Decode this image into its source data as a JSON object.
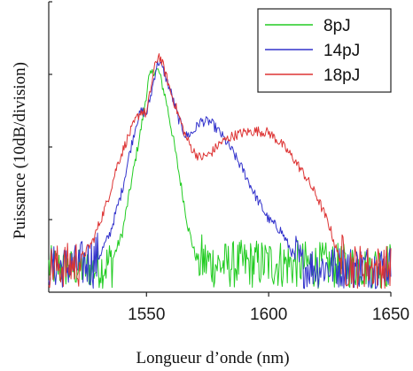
{
  "chart_data": {
    "type": "line",
    "title": "",
    "xlabel": "Longueur d’onde (nm)",
    "ylabel": "Puissance (10dB/division)",
    "xlim": [
      1510,
      1650
    ],
    "ylim": [
      0,
      4
    ],
    "x_ticks": [
      1550,
      1600,
      1650
    ],
    "x_tick_labels": [
      "1550",
      "1600",
      "1650"
    ],
    "y_ticks": [
      1,
      2,
      3,
      4
    ],
    "y_tick_labels": [
      "",
      "",
      "",
      ""
    ],
    "grid": false,
    "legend_position": "top-right",
    "noise_floor": 0.05,
    "series": [
      {
        "name": "8pJ",
        "color": "#22cc22",
        "x": [
          1510,
          1520,
          1530,
          1535,
          1540,
          1544,
          1548,
          1551,
          1553,
          1555,
          1558,
          1561,
          1564,
          1567,
          1570,
          1573,
          1576,
          1580,
          1600,
          1620,
          1640,
          1650
        ],
        "y": [
          0.25,
          0.2,
          0.2,
          0.35,
          0.8,
          1.55,
          2.3,
          2.95,
          3.05,
          3.05,
          2.65,
          2.1,
          1.5,
          0.9,
          0.5,
          0.4,
          0.35,
          0.3,
          0.35,
          0.3,
          0.25,
          0.3
        ]
      },
      {
        "name": "14pJ",
        "color": "#3333cc",
        "x": [
          1510,
          1520,
          1530,
          1535,
          1540,
          1543,
          1546,
          1548,
          1550,
          1552,
          1554,
          1555,
          1557,
          1560,
          1563,
          1566,
          1569,
          1572,
          1576,
          1580,
          1585,
          1590,
          1595,
          1600,
          1605,
          1608,
          1611,
          1614,
          1620,
          1630,
          1640,
          1650
        ],
        "y": [
          0.25,
          0.25,
          0.45,
          0.8,
          1.4,
          1.9,
          2.35,
          2.5,
          2.45,
          2.75,
          3.1,
          3.18,
          3.05,
          2.75,
          2.4,
          2.15,
          2.2,
          2.35,
          2.35,
          2.2,
          1.95,
          1.65,
          1.3,
          1.0,
          0.85,
          0.65,
          0.45,
          0.25,
          0.25,
          0.25,
          0.25,
          0.25
        ]
      },
      {
        "name": "18pJ",
        "color": "#dd3333",
        "x": [
          1510,
          1520,
          1528,
          1534,
          1538,
          1542,
          1546,
          1548,
          1550,
          1553,
          1555,
          1557,
          1560,
          1563,
          1566,
          1569,
          1572,
          1576,
          1580,
          1585,
          1590,
          1595,
          1600,
          1605,
          1610,
          1615,
          1620,
          1625,
          1628,
          1632,
          1640,
          1650
        ],
        "y": [
          0.25,
          0.3,
          0.7,
          1.25,
          1.75,
          2.1,
          2.4,
          2.5,
          2.45,
          3.05,
          3.28,
          3.1,
          2.75,
          2.45,
          2.15,
          1.95,
          1.85,
          1.9,
          2.05,
          2.15,
          2.2,
          2.22,
          2.2,
          2.05,
          1.85,
          1.6,
          1.3,
          0.9,
          0.55,
          0.3,
          0.25,
          0.25
        ]
      }
    ]
  }
}
